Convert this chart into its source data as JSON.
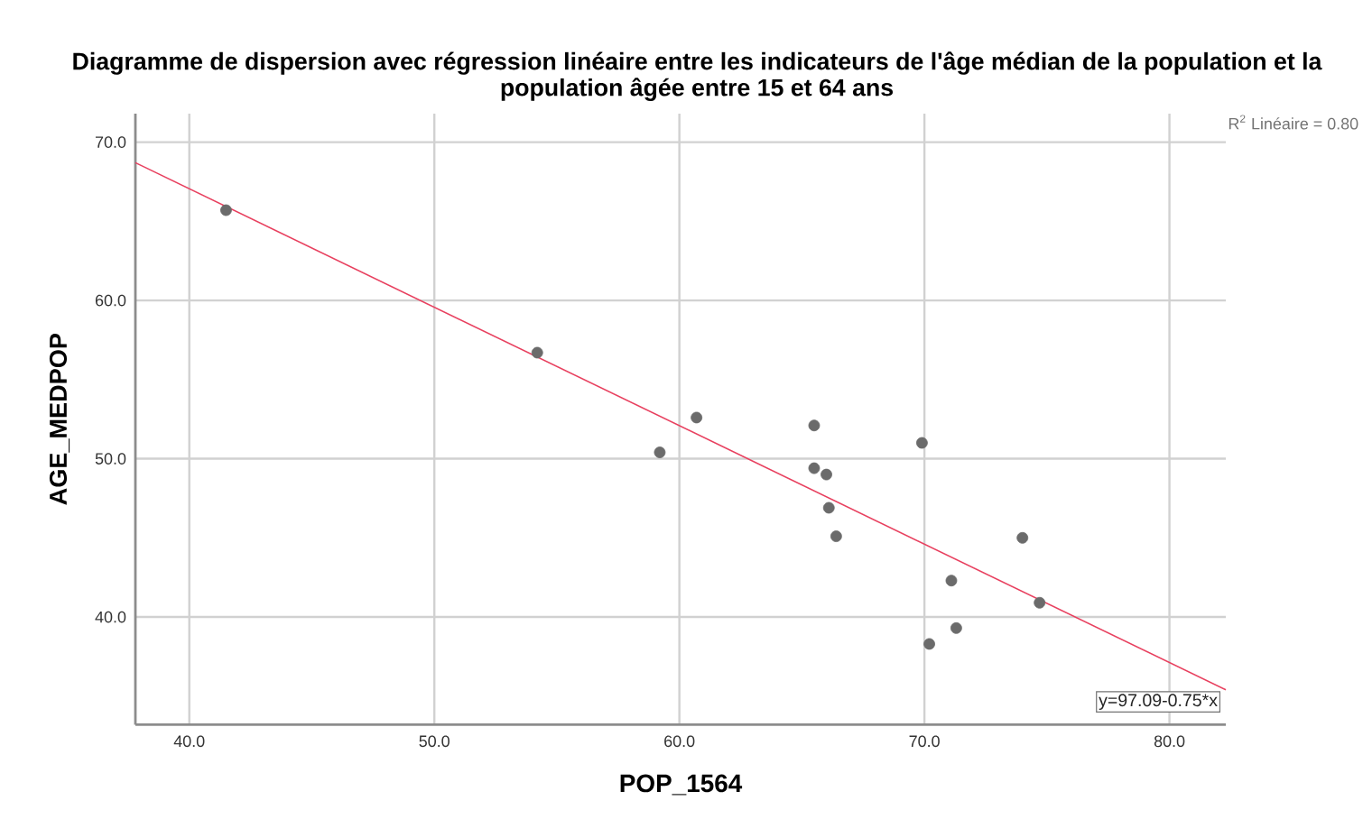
{
  "chart_data": {
    "type": "scatter",
    "title": "Diagramme de dispersion avec régression linéaire entre les indicateurs de l'âge médian de la population et la population âgée entre 15 et 64 ans",
    "xlabel": "POP_1564",
    "ylabel": "AGE_MEDPOP",
    "x": [
      41.5,
      54.2,
      59.2,
      60.7,
      65.5,
      65.5,
      66.0,
      66.1,
      66.4,
      69.9,
      70.2,
      71.1,
      71.3,
      74.0,
      74.7
    ],
    "series": [
      {
        "color": "#6b6b6b",
        "marker": "circle",
        "values": [
          65.7,
          56.7,
          50.4,
          52.6,
          52.1,
          49.4,
          49.0,
          46.9,
          45.1,
          51.0,
          38.3,
          42.3,
          39.3,
          45.0,
          40.9
        ]
      },
      {
        "type": "line",
        "color": "#e8405f",
        "marker": "none",
        "x": [
          37.8,
          82.3
        ],
        "values": [
          68.7,
          35.4
        ]
      }
    ],
    "xlim": [
      37.8,
      82.3
    ],
    "ylim": [
      33.2,
      71.8
    ],
    "xticks": [
      {
        "value": 40,
        "label": "40.0"
      },
      {
        "value": 50,
        "label": "50.0"
      },
      {
        "value": 60,
        "label": "60.0"
      },
      {
        "value": 70,
        "label": "70.0"
      },
      {
        "value": 80,
        "label": "80.0"
      }
    ],
    "yticks": [
      {
        "value": 40,
        "label": "40.0"
      },
      {
        "value": 50,
        "label": "50.0"
      },
      {
        "value": 60,
        "label": "60.0"
      },
      {
        "value": 70,
        "label": "70.0"
      }
    ],
    "grid": true,
    "annotations": [
      "R$^{2}$ Linéaire = 0.80",
      "y=97.09-0.75*x"
    ]
  }
}
